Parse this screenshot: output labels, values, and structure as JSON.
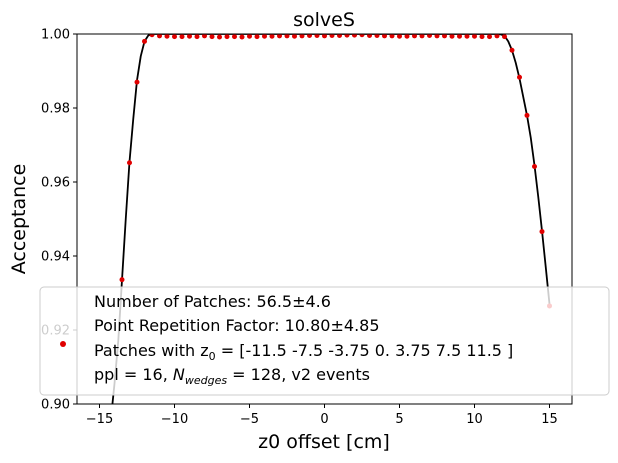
{
  "chart_data": {
    "type": "scatter",
    "title": "solveS",
    "xlabel": "z0 offset [cm]",
    "ylabel": "Acceptance",
    "xlim": [
      -16.5,
      16.5
    ],
    "ylim": [
      0.9,
      1.0
    ],
    "xticks": [
      -15,
      -10,
      -5,
      0,
      5,
      10,
      15
    ],
    "xtick_labels": [
      "−15",
      "−10",
      "−5",
      "0",
      "5",
      "10",
      "15"
    ],
    "yticks": [
      0.9,
      0.92,
      0.94,
      0.96,
      0.98,
      1.0
    ],
    "ytick_labels": [
      "0.90",
      "0.92",
      "0.94",
      "0.96",
      "0.98",
      "1.00"
    ],
    "grid": false,
    "legend_placement": "lower center",
    "legend": {
      "lines": [
        "Number of Patches: 56.5±4.6",
        "Point Repetition Factor: 10.80±4.85",
        "Patches with z0 = [-11.5   -7.5   -3.75   0.     3.75   7.5   11.5 ]",
        "ppl = 16, Nwedges = 128, v2 events"
      ],
      "line3_prefix": "Patches with z",
      "line3_sub": "0",
      "line3_suffix": " = [-11.5   -7.5   -3.75   0.     3.75   7.5   11.5 ]",
      "line4_prefix": "ppl = 16, ",
      "line4_italic": "N",
      "line4_sub": "wedges",
      "line4_suffix": " = 128, v2 events"
    },
    "colors": {
      "points": "#e00000",
      "curve": "#000000"
    },
    "series": [
      {
        "kind": "points",
        "x": [
          -14.0,
          -13.5,
          -13.0,
          -12.5,
          -12.0,
          -11.5,
          -11.0,
          -10.5,
          -10.0,
          -9.5,
          -9.0,
          -8.5,
          -8.0,
          -7.5,
          -7.0,
          -6.5,
          -6.0,
          -5.5,
          -5.0,
          -4.5,
          -4.0,
          -3.5,
          -3.0,
          -2.5,
          -2.0,
          -1.5,
          -1.0,
          -0.5,
          0.0,
          0.5,
          1.0,
          1.5,
          2.0,
          2.5,
          3.0,
          3.5,
          4.0,
          4.5,
          5.0,
          5.5,
          6.0,
          6.5,
          7.0,
          7.5,
          8.0,
          8.5,
          9.0,
          9.5,
          10.0,
          10.5,
          11.0,
          11.5,
          12.0,
          12.5,
          13.0,
          13.5,
          14.0,
          14.5,
          15.0
        ],
        "y": [
          0.897,
          0.9336,
          0.9652,
          0.987,
          0.998,
          0.9998,
          0.9995,
          0.9994,
          0.9993,
          0.9993,
          0.9994,
          0.9993,
          0.9995,
          0.9993,
          0.9992,
          0.9993,
          0.9993,
          0.9992,
          0.9994,
          0.9993,
          0.9994,
          0.9994,
          0.9995,
          0.9995,
          0.9994,
          0.9995,
          0.9996,
          0.9996,
          0.9995,
          0.9996,
          0.9996,
          0.9997,
          0.9997,
          0.9998,
          0.9996,
          0.9996,
          0.9995,
          0.9995,
          0.9994,
          0.9994,
          0.9995,
          0.9995,
          0.9996,
          0.9995,
          0.9995,
          0.9994,
          0.9994,
          0.9994,
          0.9994,
          0.9993,
          0.9993,
          0.9995,
          0.9993,
          0.9956,
          0.9883,
          0.978,
          0.9642,
          0.9466,
          0.9265
        ]
      },
      {
        "kind": "curve",
        "x": [
          -14.2,
          -14.0,
          -13.75,
          -13.5,
          -13.25,
          -13.0,
          -12.75,
          -12.5,
          -12.25,
          -12.0,
          -11.75,
          -11.5,
          -11.25,
          -11.0,
          -10.0,
          -8.0,
          -6.0,
          -4.0,
          -2.0,
          0.0,
          2.0,
          4.0,
          6.0,
          8.0,
          10.0,
          11.0,
          11.5,
          11.75,
          12.0,
          12.25,
          12.5,
          12.75,
          13.0,
          13.25,
          13.5,
          13.75,
          14.0,
          14.25,
          14.5,
          14.75,
          15.0
        ],
        "y": [
          0.8975,
          0.9055,
          0.917,
          0.9335,
          0.95,
          0.9655,
          0.977,
          0.9875,
          0.994,
          0.998,
          0.9996,
          1.0,
          1.0,
          1.0,
          1.0,
          1.0,
          1.0,
          1.0,
          1.0,
          1.0,
          1.0,
          1.0,
          1.0,
          1.0,
          1.0,
          1.0,
          1.0,
          0.9999,
          0.9995,
          0.998,
          0.9956,
          0.9922,
          0.988,
          0.983,
          0.978,
          0.972,
          0.9645,
          0.956,
          0.9468,
          0.937,
          0.927
        ]
      }
    ]
  }
}
